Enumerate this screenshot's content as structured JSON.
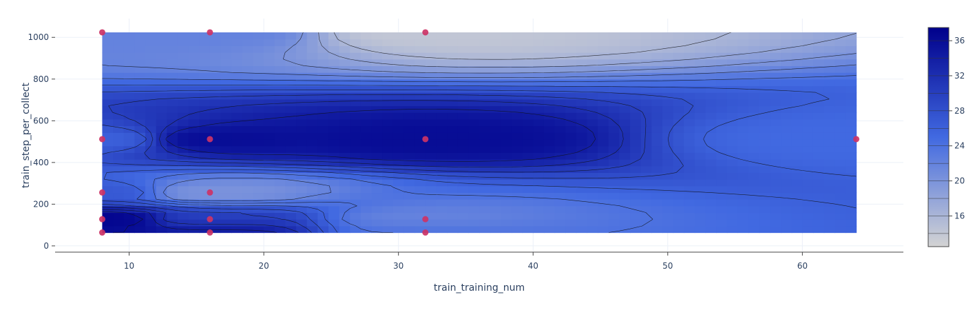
{
  "chart_data": {
    "type": "contour",
    "xlabel": "train_training_num",
    "ylabel": "train_step_per_collect",
    "xlim": [
      4.5,
      67.5
    ],
    "ylim": [
      -30,
      1090
    ],
    "x_ticks": [
      10,
      20,
      30,
      40,
      50,
      60
    ],
    "y_ticks": [
      0,
      200,
      400,
      600,
      800,
      1000
    ],
    "y_tick_labels": [
      "0",
      "200",
      "400",
      "600",
      "800",
      "1000"
    ],
    "grid": true,
    "surface_extent": {
      "x": [
        8,
        64
      ],
      "y": [
        64,
        1024
      ]
    },
    "colorscale": [
      "#d3d3d3",
      "#4169e1",
      "#00008b"
    ],
    "colorbar": {
      "range": [
        12.5,
        37.5
      ],
      "ticks": [
        16,
        20,
        24,
        28,
        32,
        36
      ]
    },
    "contour_interval": 2,
    "points": [
      {
        "x": 8,
        "y": 1024,
        "value": 22
      },
      {
        "x": 16,
        "y": 1024,
        "value": 22
      },
      {
        "x": 32,
        "y": 1024,
        "value": 14
      },
      {
        "x": 8,
        "y": 512,
        "value": 26
      },
      {
        "x": 16,
        "y": 512,
        "value": 36
      },
      {
        "x": 32,
        "y": 512,
        "value": 36
      },
      {
        "x": 64,
        "y": 512,
        "value": 25
      },
      {
        "x": 8,
        "y": 256,
        "value": 27
      },
      {
        "x": 16,
        "y": 256,
        "value": 20
      },
      {
        "x": 8,
        "y": 128,
        "value": 37
      },
      {
        "x": 16,
        "y": 128,
        "value": 30
      },
      {
        "x": 32,
        "y": 128,
        "value": 22
      },
      {
        "x": 8,
        "y": 64,
        "value": 36
      },
      {
        "x": 16,
        "y": 64,
        "value": 35
      },
      {
        "x": 32,
        "y": 64,
        "value": 24
      }
    ],
    "marker_color": "#cc3366"
  }
}
